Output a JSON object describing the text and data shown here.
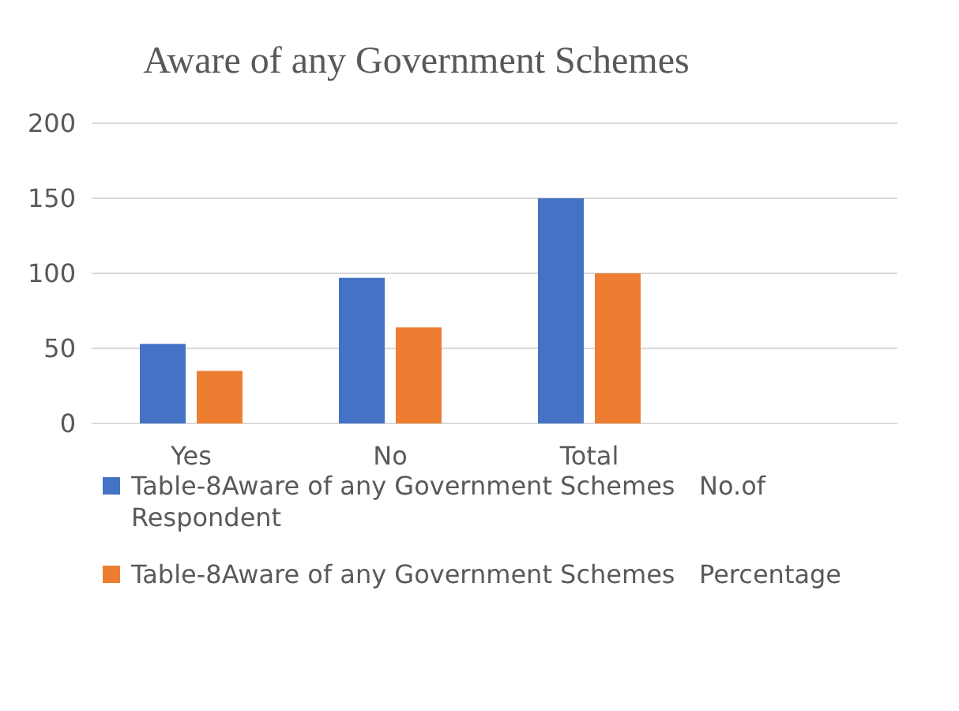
{
  "chart_data": {
    "type": "bar",
    "title": "Aware of any Government Schemes",
    "categories": [
      "Yes",
      "No",
      "Total"
    ],
    "series": [
      {
        "name": "Table-8Aware of any Government Schemes   No.of Respondent",
        "color": "#4472c4",
        "values": [
          53,
          97,
          150
        ]
      },
      {
        "name": "Table-8Aware of any Government Schemes   Percentage",
        "color": "#ed7d31",
        "values": [
          35,
          64,
          100
        ]
      }
    ],
    "ylim": [
      0,
      200
    ],
    "yticks": [
      0,
      50,
      100,
      150,
      200
    ],
    "grid": "y",
    "legend": "bottom"
  }
}
